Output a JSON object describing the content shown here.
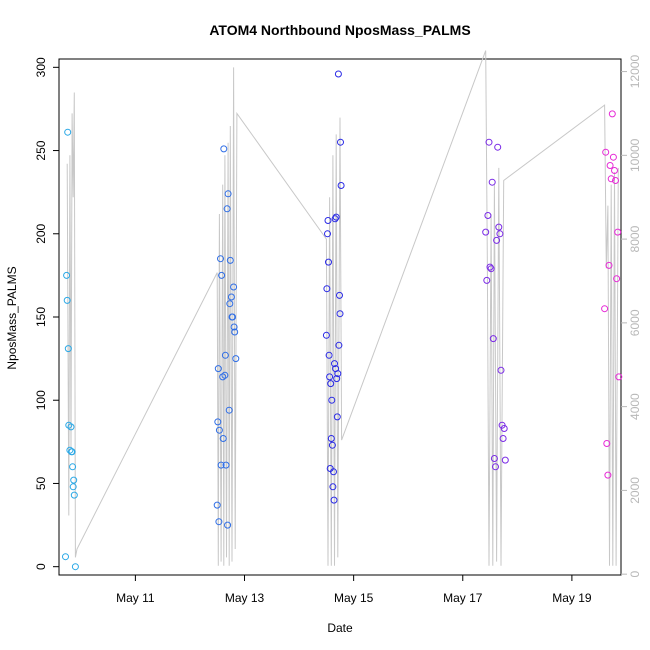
{
  "chart_data": {
    "type": "scatter",
    "title": "ATOM4 Northbound NposMass_PALMS",
    "xlabel": "Date",
    "ylabel": "NposMass_PALMS",
    "xlim": [
      9.6,
      19.9
    ],
    "ylim": [
      -5,
      305
    ],
    "y2lim": [
      -20,
      12300
    ],
    "x_ticks": [
      {
        "value": 11,
        "label": "May 11"
      },
      {
        "value": 13,
        "label": "May 13"
      },
      {
        "value": 15,
        "label": "May 15"
      },
      {
        "value": 17,
        "label": "May 17"
      },
      {
        "value": 19,
        "label": "May 19"
      }
    ],
    "y_ticks": [
      0,
      50,
      100,
      150,
      200,
      250,
      300
    ],
    "y2_ticks": [
      0,
      2000,
      4000,
      6000,
      8000,
      10000,
      12000
    ],
    "colors": {
      "flight1": "#2aa8e6",
      "flight2": "#2f6ee6",
      "flight3": "#2a2ae6",
      "flight4": "#7a2ae6",
      "flight5": "#e62ad6",
      "altitude": "#c8c8c8"
    },
    "altitude_series": {
      "name": "altitude",
      "axis": "right",
      "x": [
        9.75,
        9.78,
        9.8,
        9.82,
        9.84,
        9.86,
        9.88,
        9.9,
        9.93,
        12.5,
        12.52,
        12.54,
        12.57,
        12.6,
        12.62,
        12.64,
        12.67,
        12.7,
        12.72,
        12.74,
        12.77,
        12.8,
        12.83,
        12.86,
        14.5,
        14.53,
        14.56,
        14.59,
        14.62,
        14.65,
        14.68,
        14.71,
        14.75,
        14.78,
        17.42,
        17.45,
        17.48,
        17.52,
        17.55,
        17.58,
        17.62,
        17.66,
        17.7,
        17.75,
        19.6,
        19.63,
        19.66,
        19.69,
        19.72,
        19.75,
        19.78,
        19.81,
        19.85
      ],
      "values": [
        9800,
        1400,
        10000,
        3000,
        11000,
        9000,
        11500,
        400,
        600,
        7200,
        200,
        8600,
        300,
        9300,
        200,
        10000,
        400,
        10300,
        200,
        10700,
        300,
        12100,
        600,
        11000,
        8000,
        200,
        9000,
        200,
        10000,
        200,
        10500,
        400,
        10900,
        3200,
        12500,
        7600,
        200,
        8600,
        200,
        9300,
        300,
        9700,
        200,
        9400,
        11200,
        7300,
        8800,
        200,
        9300,
        200,
        9600,
        200,
        9700
      ]
    },
    "series": [
      {
        "name": "flight1",
        "color": "#2aa8e6",
        "x": [
          9.72,
          9.74,
          9.75,
          9.76,
          9.77,
          9.78,
          9.8,
          9.82,
          9.83,
          9.84,
          9.85,
          9.86,
          9.87,
          9.88,
          9.9
        ],
        "values": [
          6,
          175,
          160,
          261,
          131,
          85,
          70,
          84,
          69,
          69,
          60,
          48,
          52,
          43,
          0
        ]
      },
      {
        "name": "flight2",
        "color": "#2f6ee6",
        "x": [
          12.5,
          12.52,
          12.54,
          12.56,
          12.58,
          12.6,
          12.62,
          12.64,
          12.66,
          12.68,
          12.7,
          12.72,
          12.74,
          12.76,
          12.78,
          12.8,
          12.82,
          12.84,
          12.51,
          12.53,
          12.57,
          12.61,
          12.65,
          12.69,
          12.73,
          12.77,
          12.81
        ],
        "values": [
          37,
          119,
          82,
          185,
          175,
          114,
          251,
          115,
          61,
          215,
          224,
          94,
          184,
          162,
          150,
          168,
          141,
          125,
          87,
          27,
          61,
          77,
          127,
          25,
          158,
          150,
          144
        ]
      },
      {
        "name": "flight3",
        "color": "#2a2ae6",
        "x": [
          14.5,
          14.52,
          14.54,
          14.56,
          14.58,
          14.6,
          14.62,
          14.64,
          14.66,
          14.68,
          14.7,
          14.72,
          14.74,
          14.76,
          14.51,
          14.53,
          14.55,
          14.57,
          14.59,
          14.61,
          14.63,
          14.65,
          14.67,
          14.69,
          14.71,
          14.73,
          14.75,
          14.77
        ],
        "values": [
          139,
          200,
          183,
          114,
          110,
          100,
          48,
          40,
          209,
          210,
          90,
          296,
          163,
          255,
          167,
          208,
          127,
          59,
          77,
          73,
          57,
          122,
          119,
          113,
          116,
          133,
          152,
          229
        ]
      },
      {
        "name": "flight4",
        "color": "#7a2ae6",
        "x": [
          17.42,
          17.44,
          17.46,
          17.48,
          17.5,
          17.52,
          17.54,
          17.56,
          17.58,
          17.6,
          17.62,
          17.64,
          17.66,
          17.68,
          17.7,
          17.72,
          17.74,
          17.76,
          17.78
        ],
        "values": [
          201,
          172,
          211,
          255,
          180,
          179,
          231,
          137,
          65,
          60,
          196,
          252,
          204,
          200,
          118,
          85,
          77,
          83,
          64
        ]
      },
      {
        "name": "flight5",
        "color": "#e62ad6",
        "x": [
          19.6,
          19.62,
          19.64,
          19.66,
          19.68,
          19.7,
          19.72,
          19.74,
          19.76,
          19.78,
          19.8,
          19.82,
          19.84,
          19.86
        ],
        "values": [
          155,
          249,
          74,
          55,
          181,
          241,
          233,
          272,
          246,
          238,
          232,
          173,
          201,
          114
        ]
      }
    ]
  }
}
